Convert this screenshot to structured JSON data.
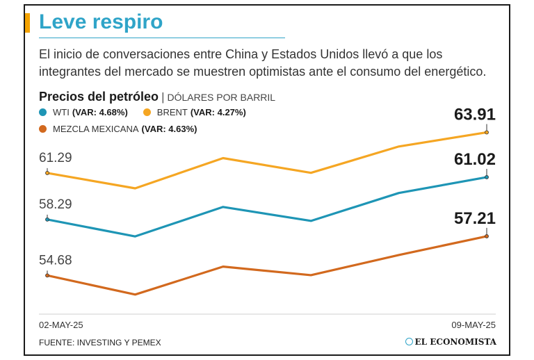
{
  "title": "Leve respiro",
  "subtitle": "El inicio de conversaciones entre China y Estados Unidos llevó a que los integrantes del mercado se muestren optimistas ante el consumo del energético.",
  "chart_heading": {
    "title": "Precios del petróleo",
    "separator": "|",
    "unit": "DÓLARES POR BARRIL"
  },
  "legend": [
    {
      "name": "WTI",
      "var": "(VAR: 4.68%)",
      "color": "#1e95b5"
    },
    {
      "name": "BRENT",
      "var": "(VAR: 4.27%)",
      "color": "#f5a623"
    },
    {
      "name": "MEZCLA MEXICANA",
      "var": "(VAR: 4.63%)",
      "color": "#d2691e"
    }
  ],
  "footer": {
    "source": "FUENTE: INVESTING Y PEMEX",
    "brand": "EL ECONOMISTA"
  },
  "chart_data": {
    "type": "line",
    "title": "Precios del petróleo",
    "ylabel": "DÓLARES POR BARRIL",
    "x": [
      "02-MAY-25",
      "",
      "",
      "",
      "",
      "09-MAY-25"
    ],
    "x_tick_labels": [
      "02-MAY-25",
      "09-MAY-25"
    ],
    "ylim": [
      52.5,
      65.5
    ],
    "grid": false,
    "series": [
      {
        "name": "BRENT",
        "color": "#f5a623",
        "values": [
          61.29,
          60.3,
          62.25,
          61.3,
          63.0,
          63.91
        ],
        "start_label": "61.29",
        "end_label": "63.91"
      },
      {
        "name": "WTI",
        "color": "#1e95b5",
        "values": [
          58.29,
          57.2,
          59.1,
          58.2,
          60.0,
          61.02
        ],
        "start_label": "58.29",
        "end_label": "61.02"
      },
      {
        "name": "MEZCLA MEXICANA",
        "color": "#d2691e",
        "values": [
          54.68,
          53.45,
          55.25,
          54.7,
          56.0,
          57.21
        ],
        "start_label": "54.68",
        "end_label": "57.21"
      }
    ]
  }
}
